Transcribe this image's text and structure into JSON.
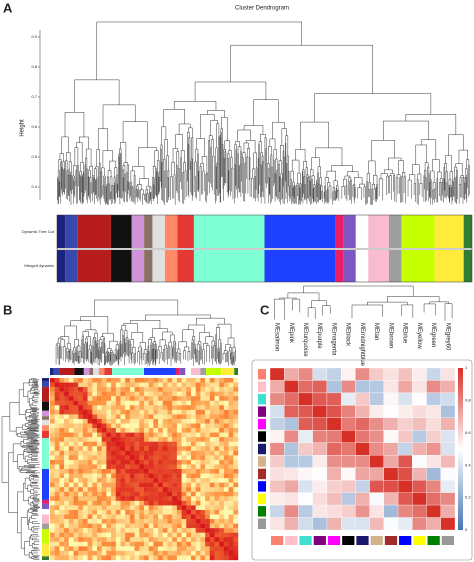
{
  "panel_a": {
    "label": "A",
    "title": "Cluster Dendrogram",
    "y_axis_label": "Height",
    "y_ticks": [
      "0.9",
      "0.8",
      "0.7",
      "0.6",
      "0.5",
      "0.4"
    ],
    "row_labels": [
      "Dynamic Tree Cut",
      "Merged dynamic"
    ]
  },
  "panel_b": {
    "label": "B"
  },
  "panel_c": {
    "label": "C",
    "modules": [
      "MEsalmon",
      "MEpink",
      "MEturquoise",
      "MEpurple",
      "MEmagenta",
      "MEblack",
      "MEmidnightblue",
      "MEtan",
      "MEbrown",
      "MEblue",
      "MEyellow",
      "MEgreen",
      "MEgrey60"
    ],
    "colorbar_ticks": [
      "1",
      "0.8",
      "0.6",
      "0.4",
      "0.2",
      "0"
    ]
  }
}
